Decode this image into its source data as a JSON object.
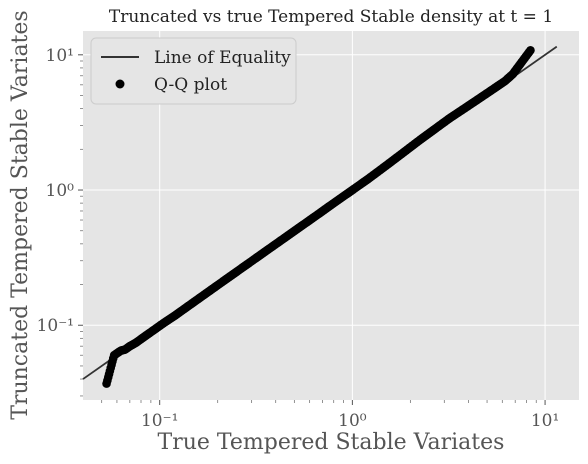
{
  "chart_data": {
    "type": "scatter",
    "title": "Truncated vs true Tempered Stable density at t = 1",
    "xlabel": "True Tempered Stable Variates",
    "ylabel": "Truncated Tempered Stable Variates",
    "xscale": "log",
    "yscale": "log",
    "xlim": [
      0.04,
      15
    ],
    "ylim": [
      0.028,
      15
    ],
    "grid": true,
    "legend_position": "top-left",
    "x_ticks": [
      {
        "value": 0.1,
        "label": "10⁻¹"
      },
      {
        "value": 1,
        "label": "10⁰"
      },
      {
        "value": 10,
        "label": "10¹"
      }
    ],
    "y_ticks": [
      {
        "value": 0.1,
        "label": "10⁻¹"
      },
      {
        "value": 1,
        "label": "10⁰"
      },
      {
        "value": 10,
        "label": "10¹"
      }
    ],
    "series": [
      {
        "name": "Line of Equality",
        "kind": "line",
        "color": "#333333",
        "x": [
          0.04,
          11.5
        ],
        "y": [
          0.04,
          11.5
        ]
      },
      {
        "name": "Q-Q plot",
        "kind": "scatter",
        "color": "#000000",
        "x": [
          0.053,
          0.058,
          0.063,
          0.066,
          0.07,
          0.075,
          0.08,
          0.087,
          0.095,
          0.105,
          0.12,
          0.14,
          0.17,
          0.2,
          0.25,
          0.3,
          0.37,
          0.45,
          0.55,
          0.65,
          0.8,
          1.0,
          1.2,
          1.5,
          1.8,
          2.2,
          2.7,
          3.2,
          3.8,
          4.4,
          5.0,
          5.5,
          6.2,
          6.8,
          8.4
        ],
        "y": [
          0.037,
          0.06,
          0.065,
          0.066,
          0.07,
          0.074,
          0.079,
          0.086,
          0.094,
          0.104,
          0.118,
          0.138,
          0.168,
          0.198,
          0.248,
          0.298,
          0.368,
          0.448,
          0.548,
          0.648,
          0.8,
          1.0,
          1.2,
          1.52,
          1.85,
          2.3,
          2.85,
          3.4,
          4.0,
          4.6,
          5.2,
          5.7,
          6.4,
          7.2,
          10.8
        ]
      }
    ]
  }
}
